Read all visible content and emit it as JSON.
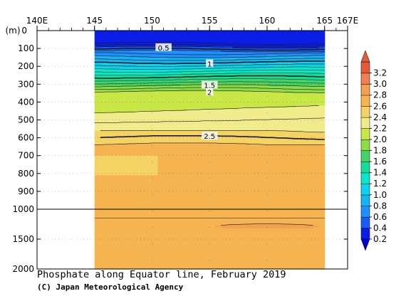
{
  "title": "Phosphate along Equator line, February 2019",
  "credit": "(C) Japan Meteorological Agency",
  "chart_data": {
    "type": "heatmap",
    "title": "Phosphate along Equator line, February 2019",
    "x_axis": {
      "unit_label": "",
      "tick_labels": [
        "140E",
        "145",
        "150",
        "155",
        "160",
        "165",
        "167E"
      ],
      "ticks": [
        140,
        145,
        150,
        155,
        160,
        165,
        167
      ],
      "range": [
        140,
        167
      ],
      "data_range": [
        145,
        165
      ]
    },
    "y_axis": {
      "unit_label": "(m)",
      "tick_labels": [
        "0",
        "100",
        "200",
        "300",
        "400",
        "500",
        "600",
        "700",
        "800",
        "900",
        "1000",
        "1500",
        "2000"
      ],
      "ticks": [
        0,
        100,
        200,
        300,
        400,
        500,
        600,
        700,
        800,
        900,
        1000,
        1500,
        2000
      ],
      "range": [
        0,
        2000
      ],
      "scale_break": 1000,
      "inverted": true
    },
    "colorbar": {
      "levels": [
        0.2,
        0.4,
        0.6,
        0.8,
        1.0,
        1.2,
        1.4,
        1.6,
        1.8,
        2.0,
        2.2,
        2.4,
        2.6,
        2.8,
        3.0,
        3.2
      ],
      "labels": [
        "0.2",
        "0.4",
        "0.6",
        "0.8",
        "1.0",
        "1.2",
        "1.4",
        "1.6",
        "1.8",
        "2.0",
        "2.2",
        "2.4",
        "2.6",
        "2.8",
        "3.0",
        "3.2"
      ],
      "colors": [
        "#0a1ee6",
        "#1a5cf5",
        "#1e90ff",
        "#14b4f5",
        "#0ad2f0",
        "#0ae6c8",
        "#14dc96",
        "#46d264",
        "#8cdc46",
        "#c8e646",
        "#f0ec8c",
        "#f5d264",
        "#f5b450",
        "#f5a050",
        "#f08050",
        "#e65a3c"
      ]
    },
    "contour_labels": [
      {
        "value": "0.5",
        "lon": 151,
        "depth": 95
      },
      {
        "value": "1",
        "lon": 155,
        "depth": 185
      },
      {
        "value": "1.5",
        "lon": 155,
        "depth": 305
      },
      {
        "value": "2",
        "lon": 155,
        "depth": 345
      },
      {
        "value": "2.5",
        "lon": 155,
        "depth": 590
      }
    ],
    "highlighted_contours": [
      "0.5",
      "1",
      "1.5",
      "2.5"
    ]
  }
}
